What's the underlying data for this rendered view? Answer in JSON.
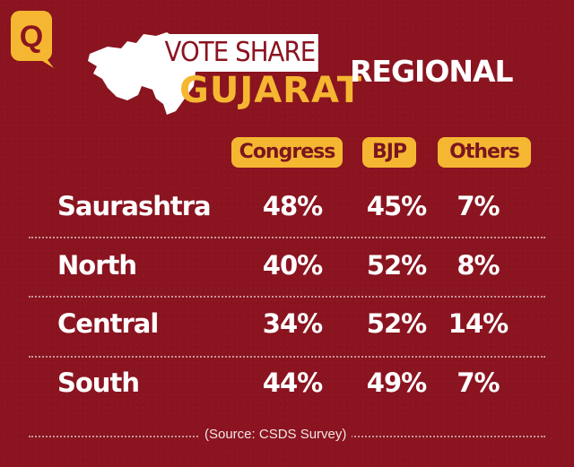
{
  "brand": {
    "logo_icon": "quint-logo",
    "accent": "#f5b731",
    "background": "#8b1420"
  },
  "header": {
    "title": "VOTE SHARE",
    "subtitle": "GUJARAT",
    "section": "REGIONAL"
  },
  "chart_data": {
    "type": "table",
    "title": "VOTE SHARE GUJARAT",
    "subtitle": "REGIONAL",
    "columns": [
      "Congress",
      "BJP",
      "Others"
    ],
    "rows": [
      {
        "region": "Saurashtra",
        "values": [
          "48%",
          "45%",
          "7%"
        ]
      },
      {
        "region": "North",
        "values": [
          "40%",
          "52%",
          "8%"
        ]
      },
      {
        "region": "Central",
        "values": [
          "34%",
          "52%",
          "14%"
        ]
      },
      {
        "region": "South",
        "values": [
          "44%",
          "49%",
          "7%"
        ]
      }
    ],
    "source": "(Source: CSDS Survey)"
  }
}
